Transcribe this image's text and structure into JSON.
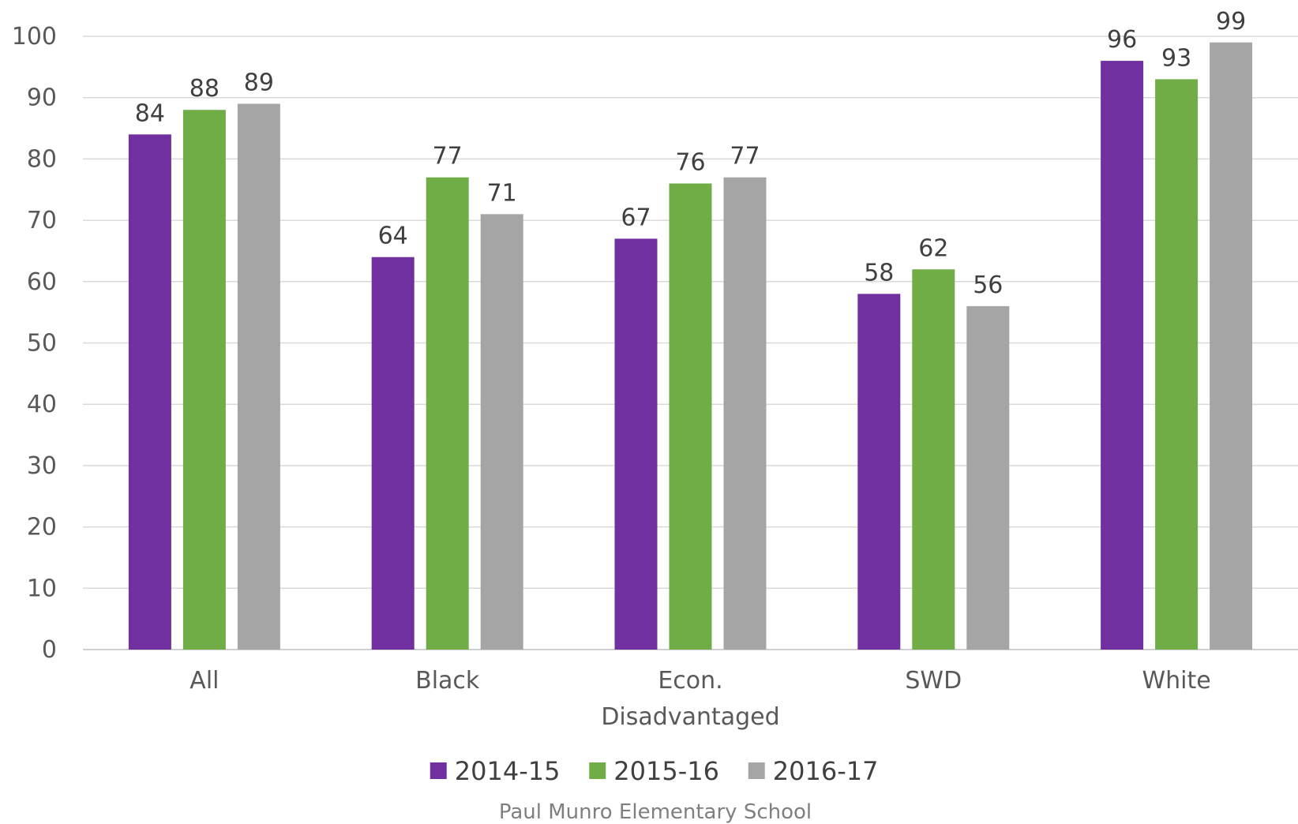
{
  "chart_data": {
    "type": "bar",
    "title": "",
    "xlabel": "",
    "ylabel": "",
    "ylim": [
      0,
      100
    ],
    "yticks": [
      0,
      10,
      20,
      30,
      40,
      50,
      60,
      70,
      80,
      90,
      100
    ],
    "grid": true,
    "legend_position": "bottom",
    "categories": [
      "All",
      "Black",
      "Econ. Disadvantaged",
      "SWD",
      "White"
    ],
    "series": [
      {
        "name": "2014-15",
        "color": "#7030a0",
        "values": [
          84,
          64,
          67,
          58,
          96
        ]
      },
      {
        "name": "2015-16",
        "color": "#70ad47",
        "values": [
          88,
          77,
          76,
          62,
          93
        ]
      },
      {
        "name": "2016-17",
        "color": "#a5a5a5",
        "values": [
          89,
          71,
          77,
          56,
          99
        ]
      }
    ],
    "source": "Paul Munro Elementary School"
  }
}
